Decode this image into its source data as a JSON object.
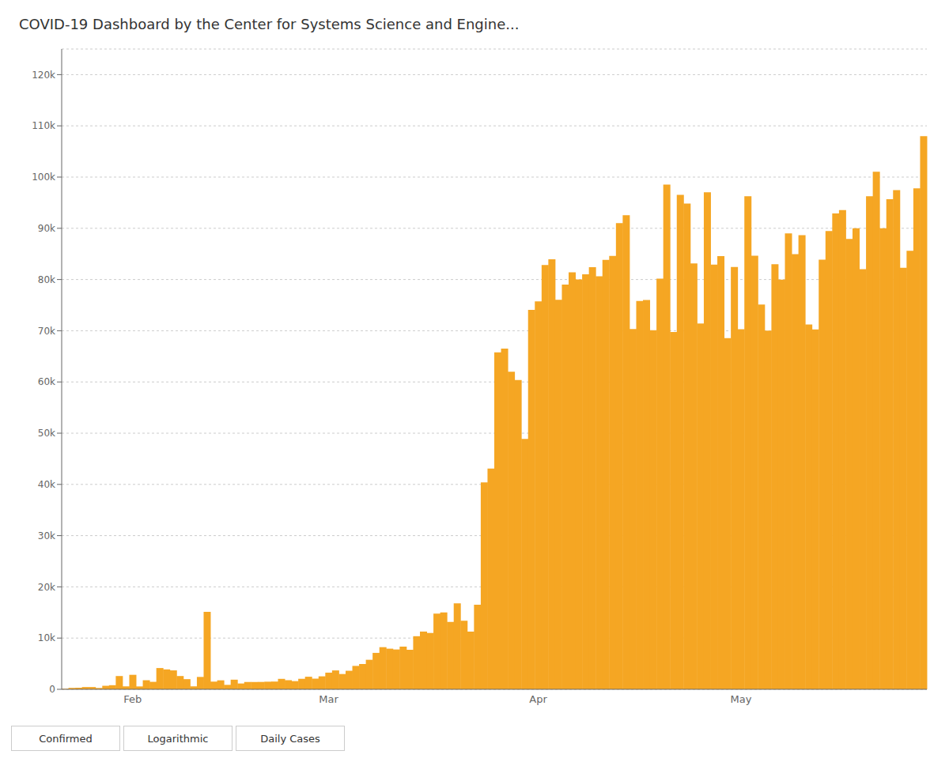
{
  "chart_data": {
    "type": "bar",
    "title": "COVID-19 Dashboard by the Center for Systems Science and Engine...",
    "annotations": [
      "Confirmed",
      "Logarithmic",
      "Daily Cases"
    ],
    "categories": [
      null,
      null,
      null,
      null,
      null,
      null,
      null,
      null,
      null,
      null,
      "Feb",
      null,
      null,
      null,
      null,
      null,
      null,
      null,
      null,
      null,
      null,
      null,
      null,
      null,
      null,
      null,
      null,
      null,
      null,
      null,
      null,
      null,
      null,
      null,
      null,
      null,
      null,
      null,
      null,
      "Mar",
      null,
      null,
      null,
      null,
      null,
      null,
      null,
      null,
      null,
      null,
      null,
      null,
      null,
      null,
      null,
      null,
      null,
      null,
      null,
      null,
      null,
      null,
      null,
      null,
      null,
      null,
      null,
      null,
      null,
      null,
      "Apr",
      null,
      null,
      null,
      null,
      null,
      null,
      null,
      null,
      null,
      null,
      null,
      null,
      null,
      null,
      null,
      null,
      null,
      null,
      null,
      null,
      null,
      null,
      null,
      null,
      null,
      null,
      null,
      null,
      null,
      "May",
      null,
      null,
      null,
      null,
      null,
      null,
      null,
      null,
      null,
      null,
      null,
      null,
      null,
      null,
      null,
      null,
      null,
      null,
      null,
      null,
      null,
      null,
      null,
      null,
      null,
      null,
      null
    ],
    "values": [
      98,
      277,
      309,
      443,
      444,
      259,
      688,
      802,
      2590,
      576,
      2829,
      562,
      1771,
      1459,
      4151,
      3887,
      3694,
      2592,
      1981,
      578,
      2416,
      15141,
      1501,
      1754,
      868,
      1879,
      1137,
      1430,
      1425,
      1438,
      1486,
      1514,
      2040,
      1779,
      1598,
      2050,
      2455,
      2082,
      2534,
      3254,
      3686,
      2987,
      3619,
      4569,
      4935,
      5765,
      7111,
      8228,
      7932,
      7777,
      8338,
      7716,
      10367,
      11272,
      11000,
      14766,
      15000,
      13156,
      16787,
      13398,
      11264,
      16521,
      40379,
      43106,
      65778,
      66521,
      62000,
      60383,
      48877,
      74074,
      75727,
      82837,
      83967,
      76055,
      79025,
      81394,
      80023,
      81027,
      82393,
      80637,
      83836,
      84592,
      91000,
      92568,
      70344,
      75827,
      75993,
      70116,
      80188,
      98537,
      69744,
      96537,
      94845,
      83155,
      71404,
      97048,
      82904,
      84578,
      68540,
      82440,
      70274,
      96267,
      84638,
      75105,
      70025,
      82990,
      79975,
      89001,
      84965,
      88659,
      71204,
      70272,
      83892,
      89455,
      92912,
      93567,
      87920,
      90000,
      82012,
      96240,
      101032,
      90000,
      95678,
      97450,
      82300,
      85600,
      97800,
      108000
    ],
    "color": "#f5a623",
    "ylim": [
      0,
      125000
    ],
    "yticks": [
      0,
      {
        "value": 10000,
        "label": "10k"
      },
      {
        "value": 20000,
        "label": "20k"
      },
      {
        "value": 30000,
        "label": "30k"
      },
      {
        "value": 40000,
        "label": "40k"
      },
      {
        "value": 50000,
        "label": "50k"
      },
      {
        "value": 60000,
        "label": "60k"
      },
      {
        "value": 70000,
        "label": "70k"
      },
      {
        "value": 80000,
        "label": "80k"
      },
      {
        "value": 90000,
        "label": "90k"
      },
      {
        "value": 100000,
        "label": "100k"
      },
      {
        "value": 110000,
        "label": "110k"
      },
      {
        "value": 120000,
        "label": "120k"
      }
    ],
    "grid": true
  }
}
